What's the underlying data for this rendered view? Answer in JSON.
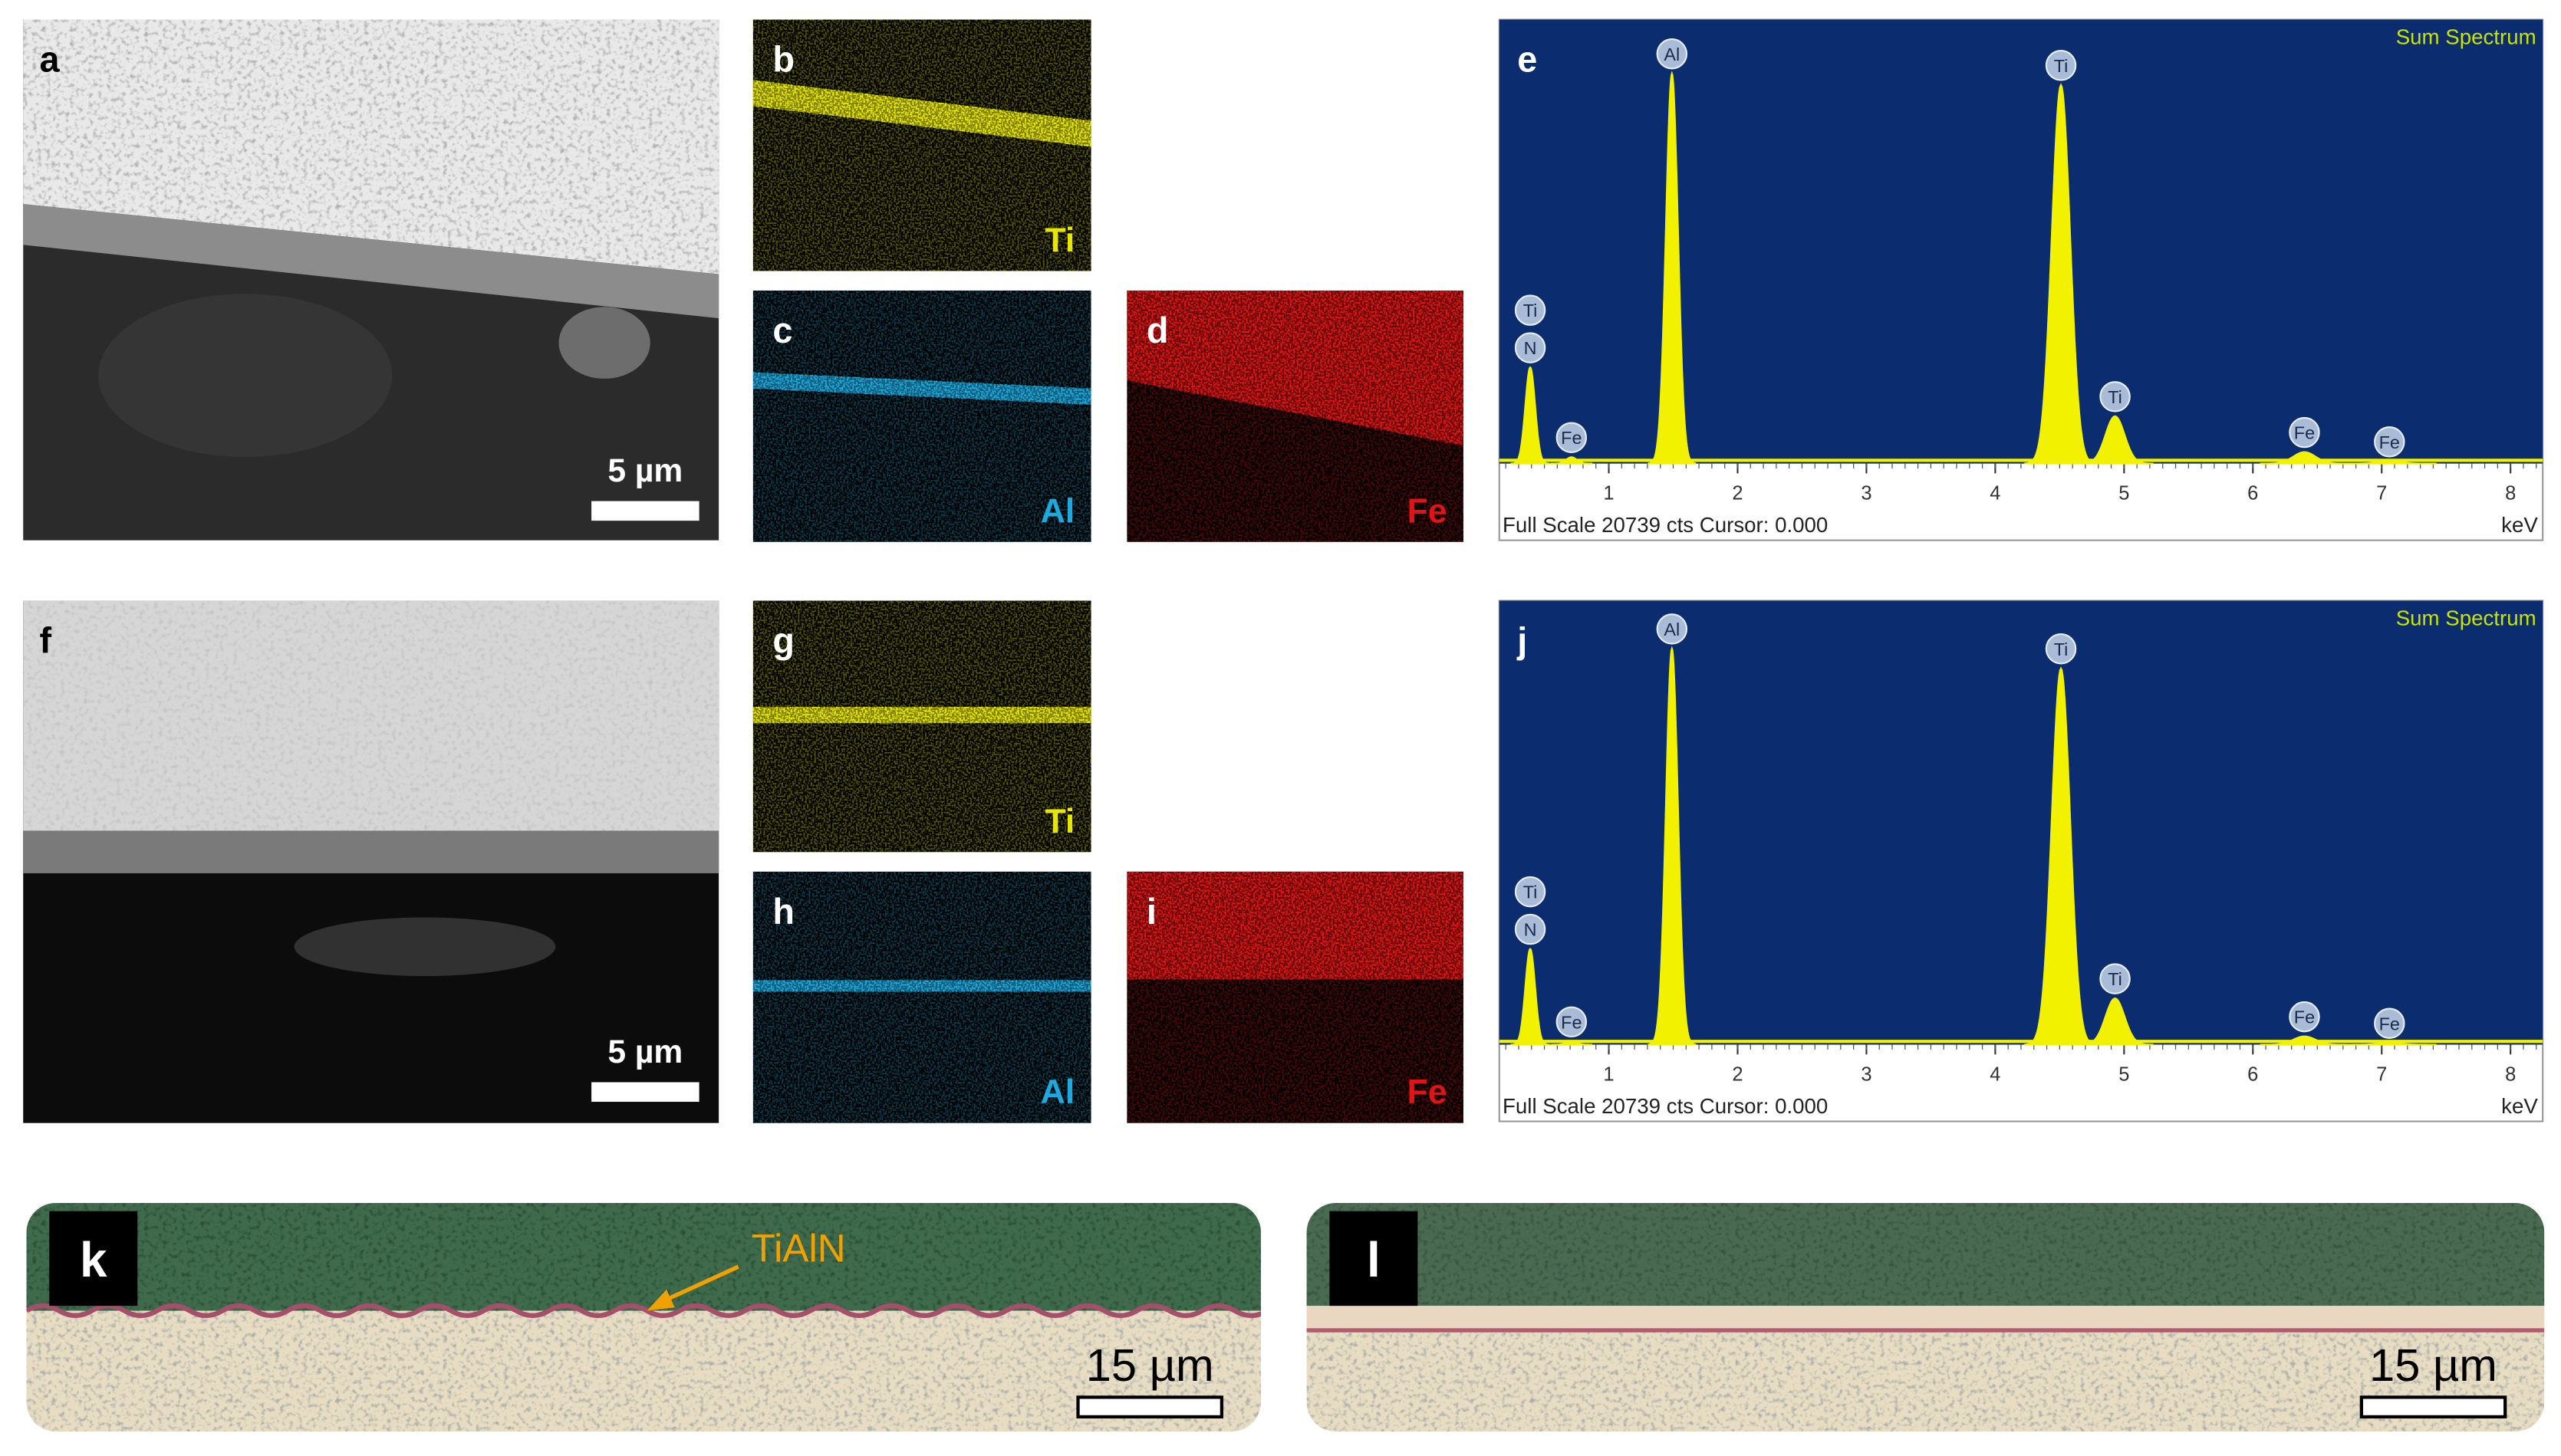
{
  "sem_images": [
    {
      "label": "a",
      "scale_bar": "5 µm"
    },
    {
      "label": "f",
      "scale_bar": "5 µm"
    }
  ],
  "element_maps": [
    {
      "label": "b",
      "element": "Ti",
      "color": "#e6e600"
    },
    {
      "label": "c",
      "element": "Al",
      "color": "#1ea8dc"
    },
    {
      "label": "d",
      "element": "Fe",
      "color": "#e01414"
    },
    {
      "label": "g",
      "element": "Ti",
      "color": "#e6e600"
    },
    {
      "label": "h",
      "element": "Al",
      "color": "#1ea8dc"
    },
    {
      "label": "i",
      "element": "Fe",
      "color": "#e01414"
    }
  ],
  "spectra": [
    {
      "label": "e",
      "title": "Sum Spectrum",
      "footer": "Full Scale 20739 cts Cursor: 0.000",
      "x_unit": "keV",
      "xlim": [
        0.15,
        8.25
      ],
      "ylim": [
        0,
        20739
      ],
      "xticks": [
        1,
        2,
        3,
        4,
        5,
        6,
        7,
        8
      ],
      "color": "#f2f200",
      "peaks": [
        {
          "labels": [
            "Ti",
            "N"
          ],
          "energy": 0.39,
          "counts": 4510
        },
        {
          "labels": [
            "Fe"
          ],
          "energy": 0.71,
          "counts": 300
        },
        {
          "labels": [
            "Al"
          ],
          "energy": 1.49,
          "counts": 18290
        },
        {
          "labels": [
            "Ti"
          ],
          "energy": 4.51,
          "counts": 17750
        },
        {
          "labels": [
            "Ti"
          ],
          "energy": 4.93,
          "counts": 2220
        },
        {
          "labels": [
            "Fe"
          ],
          "energy": 6.4,
          "counts": 540
        },
        {
          "labels": [
            "Fe"
          ],
          "energy": 7.06,
          "counts": 100
        }
      ]
    },
    {
      "label": "j",
      "title": "Sum Spectrum",
      "footer": "Full Scale 20739 cts Cursor: 0.000",
      "x_unit": "keV",
      "xlim": [
        0.15,
        8.25
      ],
      "ylim": [
        0,
        20739
      ],
      "xticks": [
        1,
        2,
        3,
        4,
        5,
        6,
        7,
        8
      ],
      "color": "#f2f200",
      "peaks": [
        {
          "labels": [
            "Ti",
            "N"
          ],
          "energy": 0.39,
          "counts": 4490
        },
        {
          "labels": [
            "Fe"
          ],
          "energy": 0.71,
          "counts": 150
        },
        {
          "labels": [
            "Al"
          ],
          "energy": 1.49,
          "counts": 18570
        },
        {
          "labels": [
            "Ti"
          ],
          "energy": 4.51,
          "counts": 17640
        },
        {
          "labels": [
            "Ti"
          ],
          "energy": 4.93,
          "counts": 2170
        },
        {
          "labels": [
            "Fe"
          ],
          "energy": 6.4,
          "counts": 390
        },
        {
          "labels": [
            "Fe"
          ],
          "energy": 7.06,
          "counts": 80
        }
      ]
    }
  ],
  "optical_images": [
    {
      "label": "k",
      "annotation": "TiAlN",
      "scale_bar": "15 µm"
    },
    {
      "label": "l",
      "scale_bar": "15 µm"
    }
  ]
}
